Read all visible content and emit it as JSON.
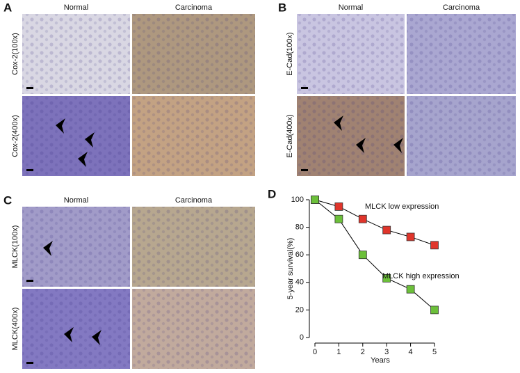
{
  "panels": [
    {
      "label": "A",
      "columns": [
        "Normal",
        "Carcinoma"
      ],
      "rows": [
        "Cox-2(100x)",
        "Cox-2(400x)"
      ]
    },
    {
      "label": "B",
      "columns": [
        "Normal",
        "Carcinoma"
      ],
      "rows": [
        "E-Cad(100x)",
        "E-Cad(400x)"
      ]
    },
    {
      "label": "C",
      "columns": [
        "Normal",
        "Carcinoma"
      ],
      "rows": [
        "MLCK(100x)",
        "MLCK(400x)"
      ]
    }
  ],
  "chart_label": "D",
  "chart_data": {
    "type": "line",
    "x": [
      0,
      1,
      2,
      3,
      4,
      5
    ],
    "series": [
      {
        "name": "MLCK low expression",
        "color": "#e0352b",
        "values": [
          100,
          95,
          86,
          78,
          73,
          67
        ]
      },
      {
        "name": "MLCK high expression",
        "color": "#6cc03a",
        "values": [
          100,
          86,
          60,
          43,
          35,
          20
        ]
      }
    ],
    "xlabel": "Years",
    "ylabel": "5-year survival(%)",
    "xlim": [
      0,
      5
    ],
    "xticks": [
      0,
      1,
      2,
      3,
      4,
      5
    ],
    "ylim": [
      0,
      100
    ],
    "yticks": [
      0,
      20,
      40,
      60,
      80,
      100
    ]
  }
}
